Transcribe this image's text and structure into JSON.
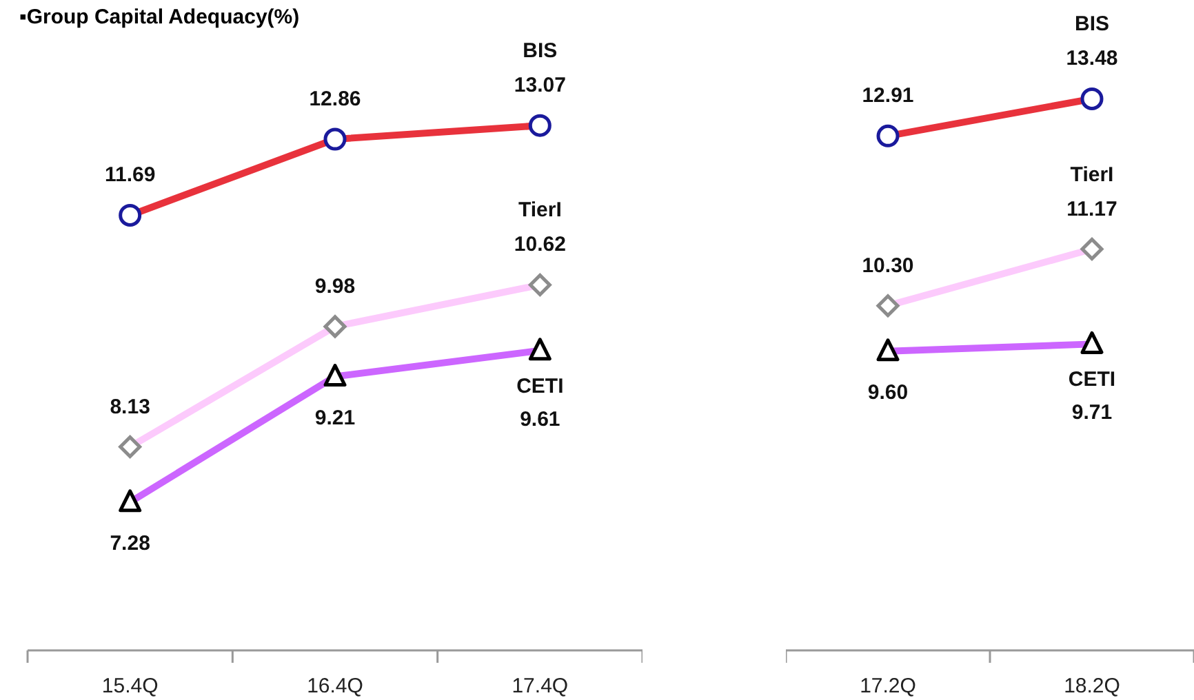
{
  "chart_data": [
    {
      "type": "line",
      "title": "▪Group Capital Adequacy(%)",
      "categories": [
        "15.4Q",
        "16.4Q",
        "17.4Q"
      ],
      "ylim": [
        5,
        15
      ],
      "tick_labels": "x",
      "legend": false,
      "grid": false,
      "series": [
        {
          "name": "BIS",
          "color": "#e8323c",
          "marker": "circle",
          "values": [
            11.69,
            12.86,
            13.07
          ],
          "value_labels": [
            "11.69",
            "12.86",
            "13.07"
          ]
        },
        {
          "name": "TierI",
          "color": "#fccafc",
          "marker": "diamond",
          "values": [
            8.13,
            9.98,
            10.62
          ],
          "value_labels": [
            "8.13",
            "9.98",
            "10.62"
          ]
        },
        {
          "name": "CETI",
          "color": "#cc66ff",
          "marker": "triangle",
          "values": [
            7.28,
            9.21,
            9.61
          ],
          "value_labels": [
            "7.28",
            "9.21",
            "9.61"
          ]
        }
      ]
    },
    {
      "type": "line",
      "categories": [
        "17.2Q",
        "18.2Q"
      ],
      "ylim": [
        5,
        15
      ],
      "tick_labels": "x",
      "legend": false,
      "grid": false,
      "series": [
        {
          "name": "BIS",
          "color": "#e8323c",
          "marker": "circle",
          "values": [
            12.91,
            13.48
          ],
          "value_labels": [
            "12.91",
            "13.48"
          ]
        },
        {
          "name": "TierI",
          "color": "#fccafc",
          "marker": "diamond",
          "values": [
            10.3,
            11.17
          ],
          "value_labels": [
            "10.30",
            "11.17"
          ]
        },
        {
          "name": "CETI",
          "color": "#cc66ff",
          "marker": "triangle",
          "values": [
            9.6,
            9.71
          ],
          "value_labels": [
            "9.60",
            "9.71"
          ]
        }
      ]
    }
  ]
}
